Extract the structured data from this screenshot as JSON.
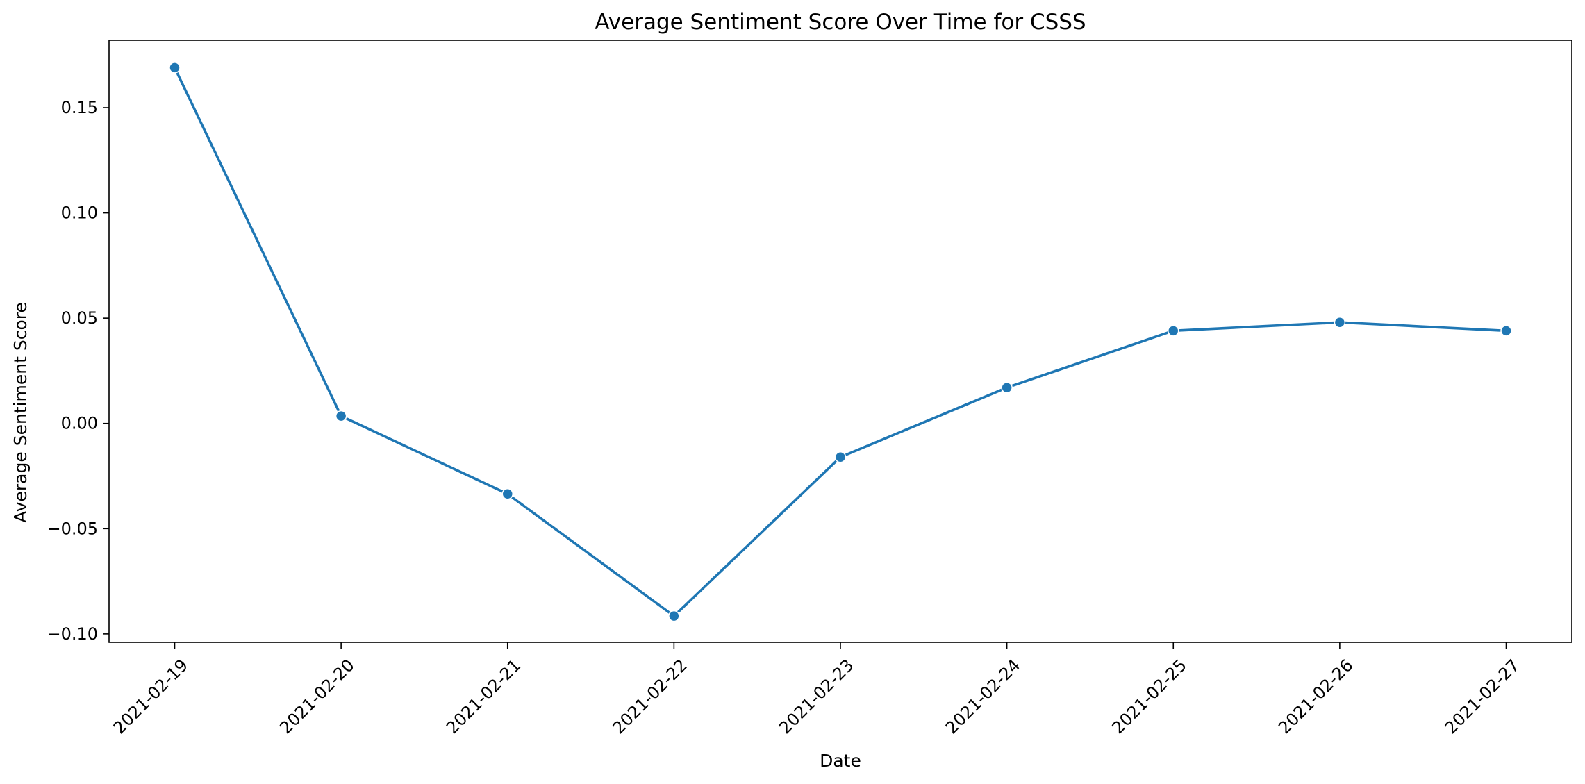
{
  "chart_data": {
    "type": "line",
    "title": "Average Sentiment Score Over Time for CSSS",
    "xlabel": "Date",
    "ylabel": "Average Sentiment Score",
    "x": [
      "2021-02-19",
      "2021-02-20",
      "2021-02-21",
      "2021-02-22",
      "2021-02-23",
      "2021-02-24",
      "2021-02-25",
      "2021-02-26",
      "2021-02-27"
    ],
    "series": [
      {
        "values": [
          0.169,
          0.0035,
          -0.0335,
          -0.0915,
          -0.016,
          0.017,
          0.044,
          0.048,
          0.044
        ],
        "color": "#1f77b4",
        "marker": "circle"
      }
    ],
    "yticks": [
      -0.1,
      -0.05,
      0.0,
      0.05,
      0.1,
      0.15
    ],
    "ytick_labels": [
      "−0.10",
      "−0.05",
      "0.00",
      "0.05",
      "0.10",
      "0.15"
    ],
    "ylim": [
      -0.104,
      0.182
    ],
    "grid": false,
    "legend": false
  }
}
